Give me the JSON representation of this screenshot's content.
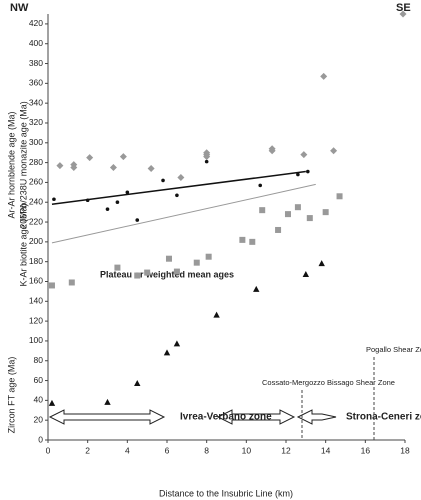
{
  "chart_data": {
    "type": "scatter",
    "x_label": "Distance to the Insubric Line (km)",
    "xlim": [
      0,
      18
    ],
    "xticks": [
      0,
      2,
      4,
      6,
      8,
      10,
      12,
      14,
      16,
      18
    ],
    "ylim": [
      0,
      430
    ],
    "yticks": [
      0,
      20,
      40,
      60,
      80,
      100,
      120,
      140,
      160,
      180,
      200,
      220,
      240,
      260,
      280,
      300,
      320,
      340,
      360,
      380,
      400,
      420
    ],
    "annotations": {
      "nw": "NW",
      "se": "SE",
      "mean": "Plateau or weighted mean ages",
      "ivrea": "Ivrea-Verbano zone",
      "strona": "Strona-Ceneri zone",
      "cossato": "Cossato-Mergozzo Bissago Shear Zone",
      "pogallo": "Pogallo Shear Zone"
    },
    "series": [
      {
        "name": "Zircon FT age (Ma)",
        "color": "#111111",
        "marker": "triangle",
        "x": [
          0.2,
          3,
          4.5,
          6,
          6.5,
          8.5,
          10.5,
          13,
          13.8
        ],
        "values": [
          37,
          38,
          57,
          88,
          97,
          126,
          152,
          167,
          178
        ]
      },
      {
        "name": "K-Ar biotite age (Ma)",
        "color": "#999999",
        "marker": "square",
        "x": [
          0.2,
          1.2,
          3.5,
          4.5,
          5,
          6.1,
          6.5,
          7.5,
          8.1,
          9.8,
          10.3,
          10.8,
          11.6,
          12.1,
          12.6,
          13.2,
          14,
          14.7
        ],
        "values": [
          156,
          159,
          174,
          166,
          169,
          183,
          170,
          179,
          185,
          202,
          200,
          232,
          212,
          228,
          235,
          224,
          230,
          246
        ]
      },
      {
        "name": "Ar-Ar hornblende age (Ma)",
        "color": "#999999",
        "marker": "diamond",
        "x": [
          0.6,
          1.3,
          1.3,
          2.1,
          3.3,
          3.8,
          5.2,
          6.7,
          8,
          8,
          8,
          11.3,
          11.3,
          12.9,
          13.9,
          14.4,
          17.9
        ],
        "values": [
          277,
          278,
          275,
          285,
          275,
          286,
          274,
          265,
          290,
          288,
          286,
          294,
          292,
          288,
          367,
          292,
          430
        ]
      },
      {
        "name": "206Pb/238U monazite age (Ma)",
        "color": "#111111",
        "marker": "circle",
        "x": [
          0.3,
          2,
          3,
          3.5,
          4,
          4.5,
          5.8,
          6.5,
          8,
          10.7,
          12.6,
          13.1
        ],
        "values": [
          243,
          242,
          233,
          240,
          250,
          222,
          262,
          247,
          281,
          257,
          268,
          271
        ]
      }
    ],
    "trend_lines": [
      {
        "color": "#111111",
        "x": [
          0.2,
          13
        ],
        "values": [
          238,
          271
        ]
      },
      {
        "color": "#999999",
        "x": [
          0.2,
          13.5
        ],
        "values": [
          199,
          258
        ]
      }
    ]
  }
}
